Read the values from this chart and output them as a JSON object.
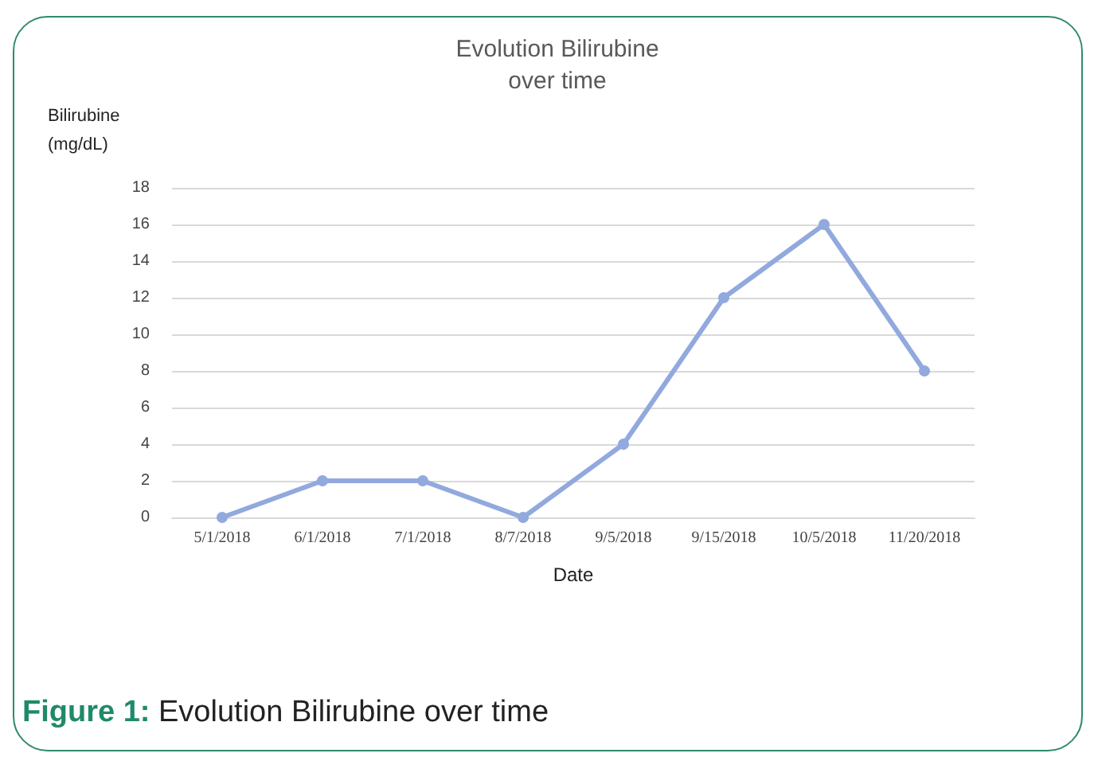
{
  "chart_data": {
    "type": "line",
    "title": "Evolution Bilirubine\nover time",
    "xlabel": "Date",
    "ylabel": "Bilirubine\n(mg/dL)",
    "categories": [
      "5/1/2018",
      "6/1/2018",
      "7/1/2018",
      "8/7/2018",
      "9/5/2018",
      "9/15/2018",
      "10/5/2018",
      "11/20/2018"
    ],
    "series": [
      {
        "color": "#92a9de",
        "values": [
          0,
          2,
          2,
          0,
          4,
          12,
          16,
          8
        ]
      }
    ],
    "ylim": [
      0,
      18
    ],
    "yticks": [
      0,
      2,
      4,
      6,
      8,
      10,
      12,
      14,
      16,
      18
    ],
    "grid": "y",
    "marker": "circle",
    "line_style": "solid",
    "annotations": [
      "Figure 1: Evolution Bilirubine over time"
    ]
  }
}
